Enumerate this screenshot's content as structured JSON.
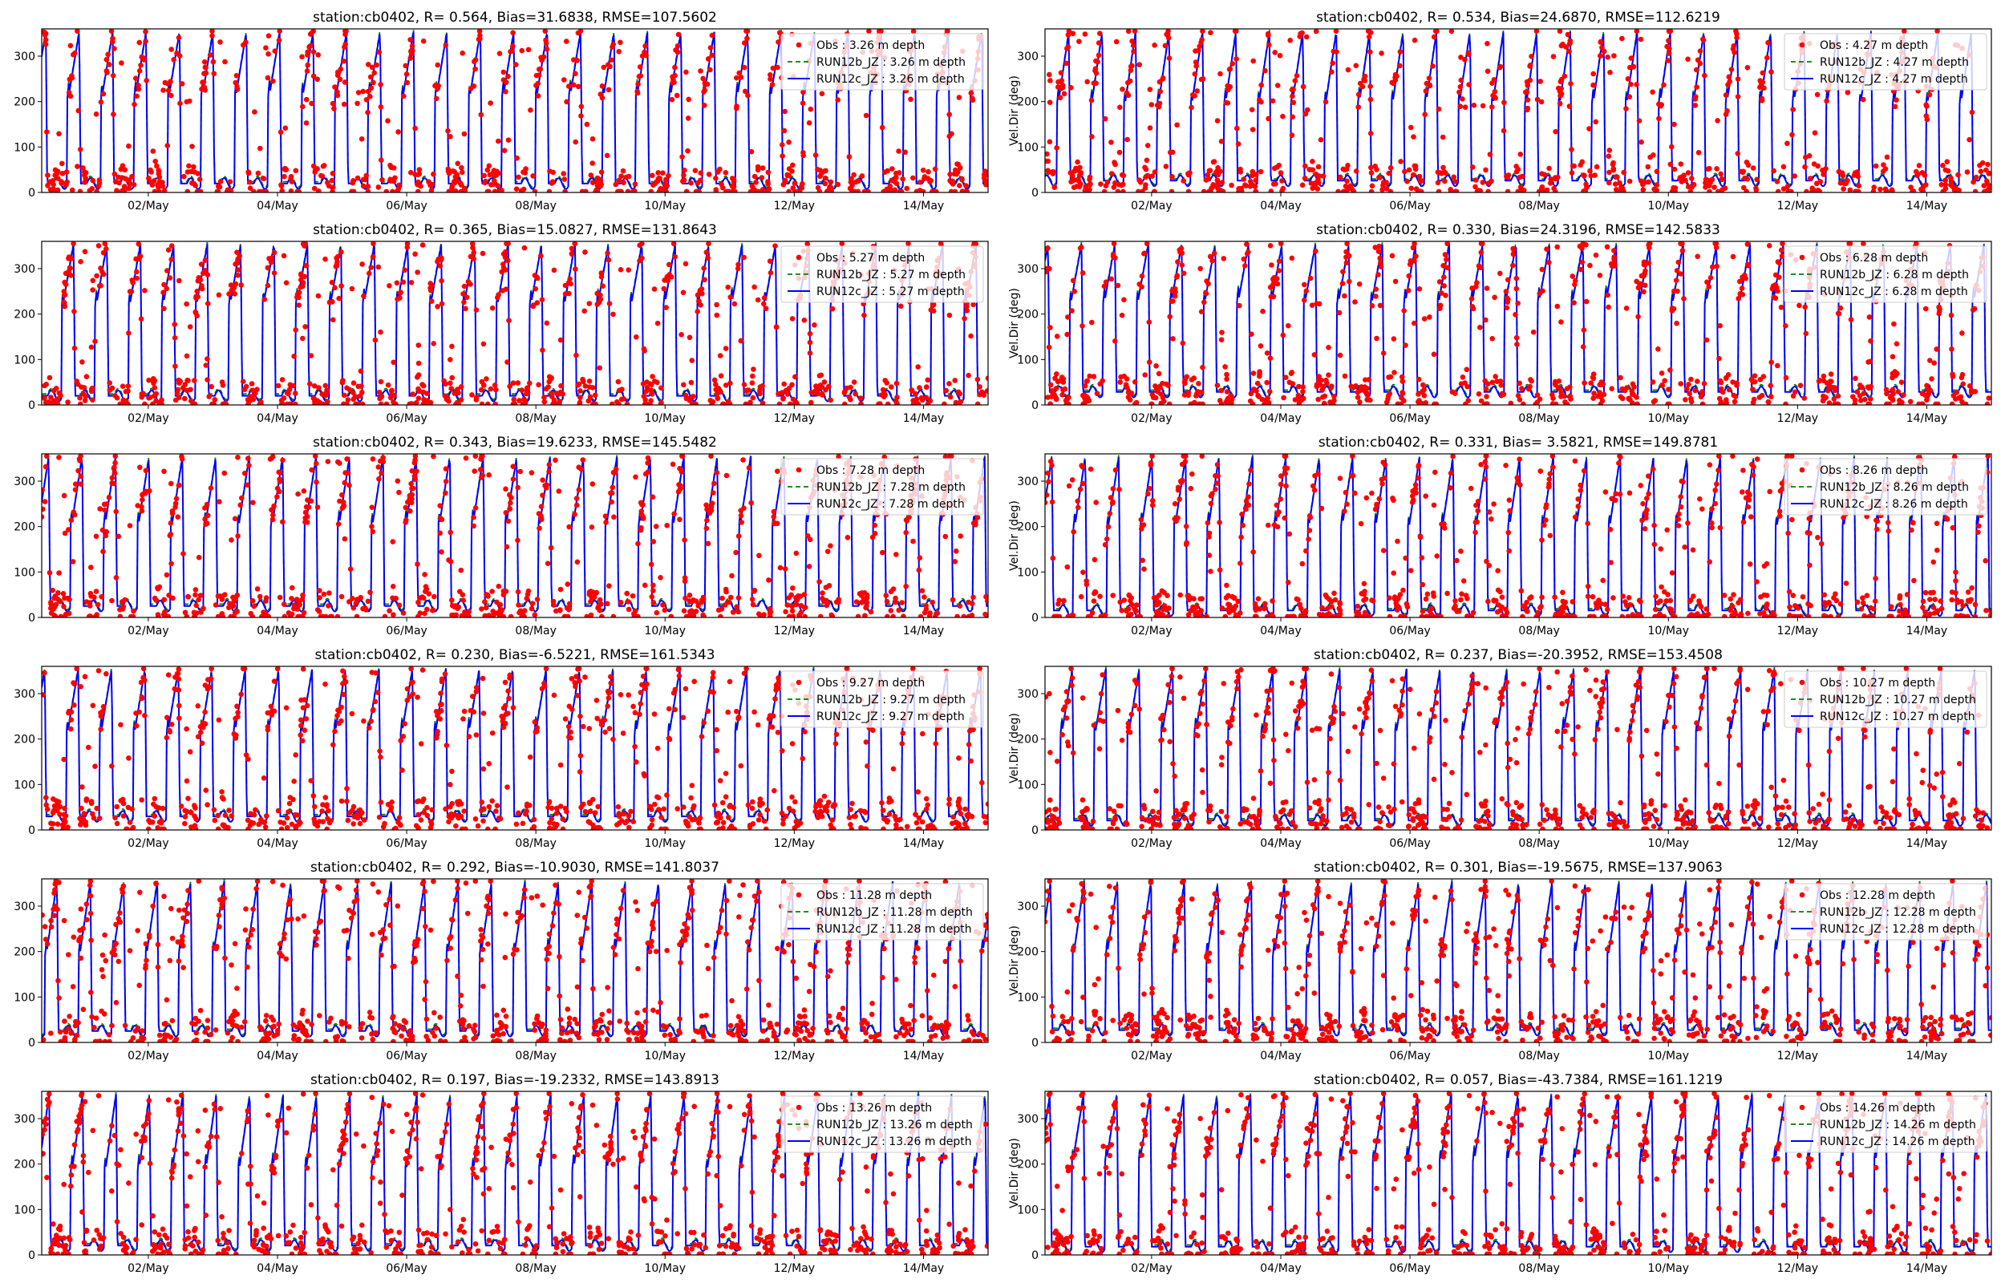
{
  "colors": {
    "obs": "#ff0000",
    "run12b": "#008000",
    "run12c": "#0000ff",
    "axes": "#000000",
    "legend_border": "#cccccc"
  },
  "chart_data": [
    {
      "type": "line",
      "title": "station:cb0402, R= 0.564, Bias=31.6838, RMSE=107.5602",
      "xlabel": "",
      "ylabel": "",
      "ylim": [
        0,
        360
      ],
      "yticks": [
        0,
        100,
        200,
        300
      ],
      "categories": [
        "02/May",
        "04/May",
        "06/May",
        "08/May",
        "10/May",
        "12/May",
        "14/May"
      ],
      "series": [
        {
          "name": "Obs : 3.26 m depth",
          "style": "scatter"
        },
        {
          "name": "RUN12b_JZ : 3.26 m depth",
          "style": "dashed"
        },
        {
          "name": "RUN12c_JZ : 3.26 m depth",
          "style": "solid"
        }
      ],
      "legend": "top-right"
    },
    {
      "type": "line",
      "title": "station:cb0402, R= 0.534, Bias=24.6870, RMSE=112.6219",
      "xlabel": "",
      "ylabel": "Vel.Dir (deg)",
      "ylim": [
        0,
        360
      ],
      "yticks": [
        0,
        100,
        200,
        300
      ],
      "categories": [
        "02/May",
        "04/May",
        "06/May",
        "08/May",
        "10/May",
        "12/May",
        "14/May"
      ],
      "series": [
        {
          "name": "Obs : 4.27 m depth",
          "style": "scatter"
        },
        {
          "name": "RUN12b_JZ : 4.27 m depth",
          "style": "dashed"
        },
        {
          "name": "RUN12c_JZ : 4.27 m depth",
          "style": "solid"
        }
      ],
      "legend": "top-right"
    },
    {
      "type": "line",
      "title": "station:cb0402, R= 0.365, Bias=15.0827, RMSE=131.8643",
      "xlabel": "",
      "ylabel": "",
      "ylim": [
        0,
        360
      ],
      "yticks": [
        0,
        100,
        200,
        300
      ],
      "categories": [
        "02/May",
        "04/May",
        "06/May",
        "08/May",
        "10/May",
        "12/May",
        "14/May"
      ],
      "series": [
        {
          "name": "Obs : 5.27 m depth",
          "style": "scatter"
        },
        {
          "name": "RUN12b_JZ : 5.27 m depth",
          "style": "dashed"
        },
        {
          "name": "RUN12c_JZ : 5.27 m depth",
          "style": "solid"
        }
      ],
      "legend": "top-right"
    },
    {
      "type": "line",
      "title": "station:cb0402, R= 0.330, Bias=24.3196, RMSE=142.5833",
      "xlabel": "",
      "ylabel": "Vel.Dir (deg)",
      "ylim": [
        0,
        360
      ],
      "yticks": [
        0,
        100,
        200,
        300
      ],
      "categories": [
        "02/May",
        "04/May",
        "06/May",
        "08/May",
        "10/May",
        "12/May",
        "14/May"
      ],
      "series": [
        {
          "name": "Obs : 6.28 m depth",
          "style": "scatter"
        },
        {
          "name": "RUN12b_JZ : 6.28 m depth",
          "style": "dashed"
        },
        {
          "name": "RUN12c_JZ : 6.28 m depth",
          "style": "solid"
        }
      ],
      "legend": "top-right"
    },
    {
      "type": "line",
      "title": "station:cb0402, R= 0.343, Bias=19.6233, RMSE=145.5482",
      "xlabel": "",
      "ylabel": "",
      "ylim": [
        0,
        360
      ],
      "yticks": [
        0,
        100,
        200,
        300
      ],
      "categories": [
        "02/May",
        "04/May",
        "06/May",
        "08/May",
        "10/May",
        "12/May",
        "14/May"
      ],
      "series": [
        {
          "name": "Obs : 7.28 m depth",
          "style": "scatter"
        },
        {
          "name": "RUN12b_JZ : 7.28 m depth",
          "style": "dashed"
        },
        {
          "name": "RUN12c_JZ : 7.28 m depth",
          "style": "solid"
        }
      ],
      "legend": "top-right"
    },
    {
      "type": "line",
      "title": "station:cb0402, R= 0.331, Bias= 3.5821, RMSE=149.8781",
      "xlabel": "",
      "ylabel": "Vel.Dir (deg)",
      "ylim": [
        0,
        360
      ],
      "yticks": [
        0,
        100,
        200,
        300
      ],
      "categories": [
        "02/May",
        "04/May",
        "06/May",
        "08/May",
        "10/May",
        "12/May",
        "14/May"
      ],
      "series": [
        {
          "name": "Obs : 8.26 m depth",
          "style": "scatter"
        },
        {
          "name": "RUN12b_JZ : 8.26 m depth",
          "style": "dashed"
        },
        {
          "name": "RUN12c_JZ : 8.26 m depth",
          "style": "solid"
        }
      ],
      "legend": "top-right"
    },
    {
      "type": "line",
      "title": "station:cb0402, R= 0.230, Bias=-6.5221, RMSE=161.5343",
      "xlabel": "",
      "ylabel": "",
      "ylim": [
        0,
        360
      ],
      "yticks": [
        0,
        100,
        200,
        300
      ],
      "categories": [
        "02/May",
        "04/May",
        "06/May",
        "08/May",
        "10/May",
        "12/May",
        "14/May"
      ],
      "series": [
        {
          "name": "Obs : 9.27 m depth",
          "style": "scatter"
        },
        {
          "name": "RUN12b_JZ : 9.27 m depth",
          "style": "dashed"
        },
        {
          "name": "RUN12c_JZ : 9.27 m depth",
          "style": "solid"
        }
      ],
      "legend": "top-right"
    },
    {
      "type": "line",
      "title": "station:cb0402, R= 0.237, Bias=-20.3952, RMSE=153.4508",
      "xlabel": "",
      "ylabel": "Vel.Dir (deg)",
      "ylim": [
        0,
        360
      ],
      "yticks": [
        0,
        100,
        200,
        300
      ],
      "categories": [
        "02/May",
        "04/May",
        "06/May",
        "08/May",
        "10/May",
        "12/May",
        "14/May"
      ],
      "series": [
        {
          "name": "Obs : 10.27 m depth",
          "style": "scatter"
        },
        {
          "name": "RUN12b_JZ : 10.27 m depth",
          "style": "dashed"
        },
        {
          "name": "RUN12c_JZ : 10.27 m depth",
          "style": "solid"
        }
      ],
      "legend": "top-right"
    },
    {
      "type": "line",
      "title": "station:cb0402, R= 0.292, Bias=-10.9030, RMSE=141.8037",
      "xlabel": "",
      "ylabel": "",
      "ylim": [
        0,
        360
      ],
      "yticks": [
        0,
        100,
        200,
        300
      ],
      "categories": [
        "02/May",
        "04/May",
        "06/May",
        "08/May",
        "10/May",
        "12/May",
        "14/May"
      ],
      "series": [
        {
          "name": "Obs : 11.28 m depth",
          "style": "scatter"
        },
        {
          "name": "RUN12b_JZ : 11.28 m depth",
          "style": "dashed"
        },
        {
          "name": "RUN12c_JZ : 11.28 m depth",
          "style": "solid"
        }
      ],
      "legend": "top-right"
    },
    {
      "type": "line",
      "title": "station:cb0402, R= 0.301, Bias=-19.5675, RMSE=137.9063",
      "xlabel": "",
      "ylabel": "Vel.Dir (deg)",
      "ylim": [
        0,
        360
      ],
      "yticks": [
        0,
        100,
        200,
        300
      ],
      "categories": [
        "02/May",
        "04/May",
        "06/May",
        "08/May",
        "10/May",
        "12/May",
        "14/May"
      ],
      "series": [
        {
          "name": "Obs : 12.28 m depth",
          "style": "scatter"
        },
        {
          "name": "RUN12b_JZ : 12.28 m depth",
          "style": "dashed"
        },
        {
          "name": "RUN12c_JZ : 12.28 m depth",
          "style": "solid"
        }
      ],
      "legend": "top-right"
    },
    {
      "type": "line",
      "title": "station:cb0402, R= 0.197, Bias=-19.2332, RMSE=143.8913",
      "xlabel": "",
      "ylabel": "",
      "ylim": [
        0,
        360
      ],
      "yticks": [
        0,
        100,
        200,
        300
      ],
      "categories": [
        "02/May",
        "04/May",
        "06/May",
        "08/May",
        "10/May",
        "12/May",
        "14/May"
      ],
      "series": [
        {
          "name": "Obs : 13.26 m depth",
          "style": "scatter"
        },
        {
          "name": "RUN12b_JZ : 13.26 m depth",
          "style": "dashed"
        },
        {
          "name": "RUN12c_JZ : 13.26 m depth",
          "style": "solid"
        }
      ],
      "legend": "top-right"
    },
    {
      "type": "line",
      "title": "station:cb0402, R= 0.057, Bias=-43.7384, RMSE=161.1219",
      "xlabel": "",
      "ylabel": "Vel.Dir (deg)",
      "ylim": [
        0,
        360
      ],
      "yticks": [
        0,
        100,
        200,
        300
      ],
      "categories": [
        "02/May",
        "04/May",
        "06/May",
        "08/May",
        "10/May",
        "12/May",
        "14/May"
      ],
      "series": [
        {
          "name": "Obs : 14.26 m depth",
          "style": "scatter"
        },
        {
          "name": "RUN12b_JZ : 14.26 m depth",
          "style": "dashed"
        },
        {
          "name": "RUN12c_JZ : 14.26 m depth",
          "style": "solid"
        }
      ],
      "legend": "top-right"
    }
  ]
}
